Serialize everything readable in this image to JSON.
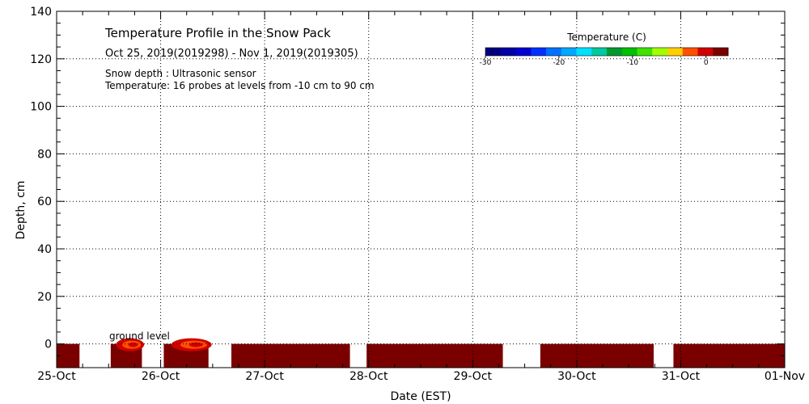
{
  "chart_data": {
    "type": "heatmap",
    "title": "Temperature Profile in the Snow Pack",
    "subtitle": "Oct 25, 2019(2019298) - Nov  1, 2019(2019305)",
    "notes": [
      "Snow depth : Ultrasonic sensor",
      "Temperature: 16 probes at levels from -10 cm to 90 cm"
    ],
    "annotation": "ground level",
    "xlabel": "Date (EST)",
    "ylabel": "Depth, cm",
    "x_tick_labels": [
      "25-Oct",
      "26-Oct",
      "27-Oct",
      "28-Oct",
      "29-Oct",
      "30-Oct",
      "31-Oct",
      "01-Nov"
    ],
    "xlim_days": [
      0,
      7
    ],
    "y_ticks": [
      0,
      20,
      40,
      60,
      80,
      100,
      120,
      140
    ],
    "ylim": [
      -10,
      140
    ],
    "grid": true,
    "colorbar": {
      "label": "Temperature (C)",
      "tick_values": [
        -30,
        -20,
        -10,
        0
      ],
      "tick_labels": [
        "-30",
        "-20",
        "-10",
        "0"
      ],
      "range": [
        -30,
        3
      ],
      "colors": [
        "#00007f",
        "#0000a6",
        "#0000cf",
        "#0030ff",
        "#0070ff",
        "#00a8ff",
        "#00e0ff",
        "#00c8a0",
        "#009a30",
        "#00c000",
        "#40e000",
        "#a0ff00",
        "#ffd000",
        "#ff5000",
        "#d00000",
        "#7a0000"
      ]
    },
    "snow_depth_cm": 0,
    "data_segments": [
      {
        "start_day": 0.0,
        "end_day": 0.22,
        "temp_c": 2
      },
      {
        "start_day": 0.52,
        "end_day": 0.82,
        "temp_c": 2,
        "near_surface_temp_c": 0
      },
      {
        "start_day": 1.03,
        "end_day": 1.46,
        "temp_c": 2,
        "near_surface_temp_c": -1
      },
      {
        "start_day": 1.68,
        "end_day": 2.82,
        "temp_c": 2
      },
      {
        "start_day": 2.98,
        "end_day": 4.29,
        "temp_c": 2
      },
      {
        "start_day": 4.65,
        "end_day": 5.74,
        "temp_c": 2
      },
      {
        "start_day": 5.93,
        "end_day": 7.0,
        "temp_c": 2
      }
    ]
  }
}
